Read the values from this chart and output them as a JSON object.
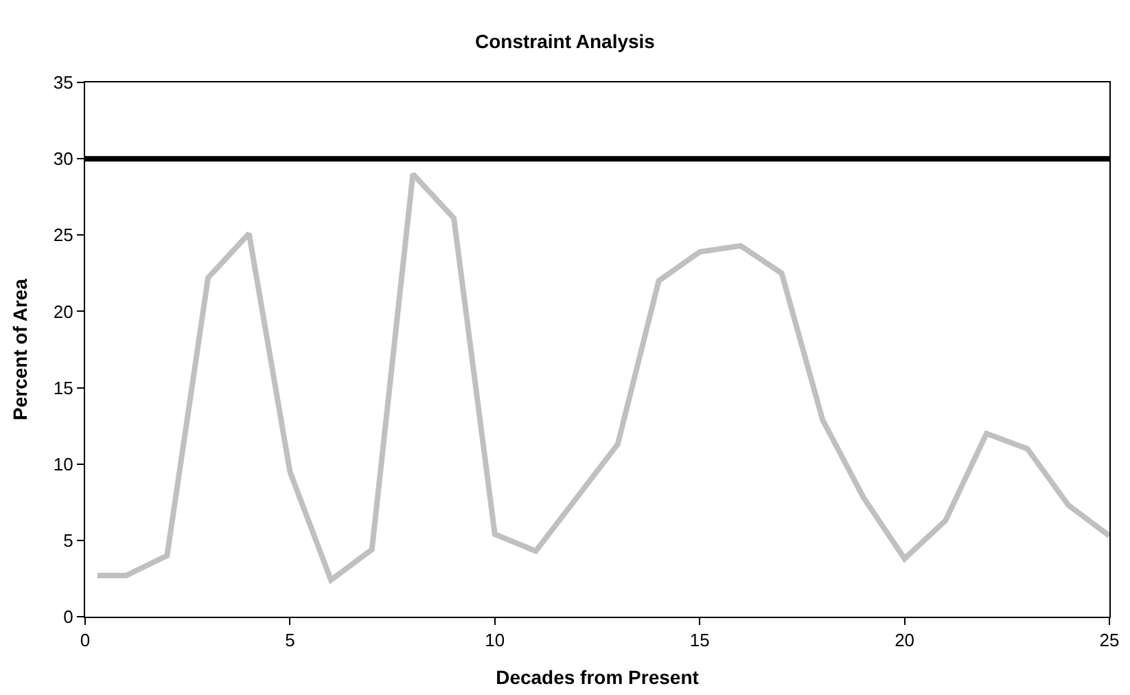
{
  "chart_data": {
    "type": "line",
    "title": "Constraint Analysis",
    "xlabel": "Decades from Present",
    "ylabel": "Percent of Area",
    "x": [
      0.3,
      1,
      2,
      3,
      4,
      5,
      6,
      7,
      8,
      9,
      10,
      11,
      12,
      13,
      14,
      15,
      16,
      17,
      18,
      19,
      20,
      21,
      22,
      23,
      24,
      25
    ],
    "series": [
      {
        "color": "#c0c0c0",
        "values": [
          2.7,
          2.7,
          4.0,
          22.2,
          25.1,
          9.5,
          2.4,
          4.4,
          29.0,
          26.1,
          5.4,
          4.3,
          7.8,
          11.3,
          22.0,
          23.9,
          24.3,
          22.5,
          12.9,
          7.8,
          3.8,
          6.3,
          12.0,
          11.0,
          7.3,
          5.3
        ]
      }
    ],
    "ref_lines": [
      {
        "axis": "y",
        "value": 30,
        "color": "#000000"
      }
    ],
    "xlim": [
      0,
      25
    ],
    "xticks": [
      0,
      5,
      10,
      15,
      20,
      25
    ],
    "ylim": [
      0,
      35
    ],
    "yticks": [
      0,
      5,
      10,
      15,
      20,
      25,
      30,
      35
    ],
    "marker": "none",
    "line_style": "solid"
  }
}
